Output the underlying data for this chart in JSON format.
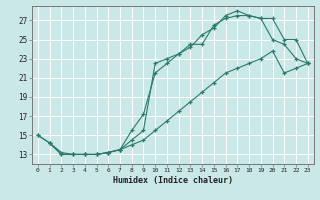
{
  "xlabel": "Humidex (Indice chaleur)",
  "bg_color": "#cbe8e8",
  "line_color": "#2a7a6a",
  "grid_color": "#ffffff",
  "xlim": [
    -0.5,
    23.5
  ],
  "ylim": [
    12.0,
    28.5
  ],
  "xticks": [
    0,
    1,
    2,
    3,
    4,
    5,
    6,
    7,
    8,
    9,
    10,
    11,
    12,
    13,
    14,
    15,
    16,
    17,
    18,
    19,
    20,
    21,
    22,
    23
  ],
  "yticks": [
    13,
    15,
    17,
    19,
    21,
    23,
    25,
    27
  ],
  "curve1_x": [
    0,
    1,
    2,
    3,
    4,
    5,
    6,
    7,
    8,
    9,
    10,
    11,
    12,
    13,
    14,
    15,
    16,
    17,
    18,
    19,
    20,
    21,
    22,
    23
  ],
  "curve1_y": [
    15.0,
    14.2,
    13.0,
    13.0,
    13.0,
    13.0,
    13.2,
    13.5,
    15.5,
    17.2,
    21.5,
    22.5,
    23.5,
    24.2,
    25.5,
    26.2,
    27.5,
    28.0,
    27.5,
    27.2,
    25.0,
    24.5,
    23.0,
    22.5
  ],
  "curve2_x": [
    0,
    1,
    2,
    3,
    4,
    5,
    6,
    7,
    8,
    9,
    10,
    11,
    12,
    13,
    14,
    15,
    16,
    17,
    18,
    19,
    20,
    21,
    22,
    23
  ],
  "curve2_y": [
    15.0,
    14.2,
    13.0,
    13.0,
    13.0,
    13.0,
    13.2,
    13.5,
    14.5,
    15.5,
    22.5,
    23.0,
    23.5,
    24.5,
    24.5,
    26.5,
    27.2,
    27.5,
    27.5,
    27.2,
    27.2,
    25.0,
    25.0,
    22.5
  ],
  "curve3_x": [
    1,
    2,
    3,
    4,
    5,
    6,
    7,
    8,
    9,
    10,
    11,
    12,
    13,
    14,
    15,
    16,
    17,
    18,
    19,
    20,
    21,
    22,
    23
  ],
  "curve3_y": [
    14.2,
    13.2,
    13.0,
    13.0,
    13.0,
    13.2,
    13.5,
    14.0,
    14.5,
    15.5,
    16.5,
    17.5,
    18.5,
    19.5,
    20.5,
    21.5,
    22.0,
    22.5,
    23.0,
    23.8,
    21.5,
    22.0,
    22.5
  ]
}
